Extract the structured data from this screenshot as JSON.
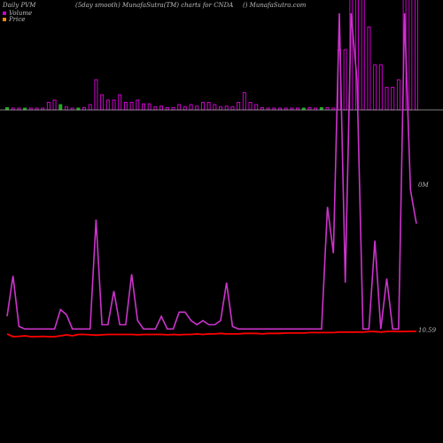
{
  "header": {
    "left": "Daily PVM",
    "middle": "(5day smooth) MunafaSutra(TM) charts for CNDA",
    "right": "() MunafaSutra.com"
  },
  "legend": [
    {
      "label": "Volume",
      "color": "#cc00cc"
    },
    {
      "label": "Price",
      "color": "#ff8800"
    }
  ],
  "colors": {
    "volume_up": "#cc00cc",
    "volume_down": "#22aa22",
    "pvm_line": "#cc33cc",
    "price_line": "#ff0000",
    "baseline": "#aaaaaa"
  },
  "chart_data": {
    "type": "bar+line",
    "title": "(5day smooth) MunafaSutra(TM) charts for CNDA",
    "volume_axis_label": "0M",
    "price_axis_label": "10.59",
    "series": [
      {
        "name": "Volume",
        "type": "bar",
        "values": [
          3,
          1,
          2,
          1,
          1,
          2,
          2,
          10,
          13,
          7,
          4,
          2,
          0,
          3,
          7,
          40,
          20,
          13,
          13,
          20,
          10,
          10,
          13,
          8,
          8,
          4,
          5,
          3,
          3,
          7,
          4,
          7,
          5,
          10,
          10,
          7,
          4,
          5,
          4,
          10,
          23,
          10,
          7,
          3,
          2,
          1,
          2,
          1,
          1,
          2,
          1,
          3,
          1,
          3,
          3,
          2,
          80,
          80,
          150,
          150,
          150,
          110,
          60,
          60,
          30,
          30,
          40,
          150,
          150,
          150
        ],
        "direction": [
          "d",
          "u",
          "u",
          "d",
          "u",
          "u",
          "u",
          "u",
          "u",
          "d",
          "u",
          "u",
          "d",
          "u",
          "u",
          "u",
          "u",
          "u",
          "u",
          "u",
          "u",
          "u",
          "u",
          "u",
          "u",
          "u",
          "u",
          "u",
          "u",
          "u",
          "u",
          "u",
          "u",
          "u",
          "u",
          "u",
          "u",
          "u",
          "u",
          "u",
          "u",
          "u",
          "u",
          "u",
          "u",
          "u",
          "u",
          "u",
          "u",
          "u",
          "d",
          "u",
          "u",
          "d",
          "u",
          "u",
          "u",
          "u",
          "u",
          "u",
          "u",
          "u",
          "u",
          "u",
          "u",
          "u",
          "u",
          "u",
          "u",
          "u"
        ]
      },
      {
        "name": "PVM",
        "type": "line",
        "values": [
          20,
          68,
          8,
          5,
          5,
          5,
          5,
          5,
          5,
          28,
          22,
          5,
          5,
          5,
          5,
          135,
          10,
          10,
          50,
          10,
          10,
          70,
          15,
          5,
          5,
          5,
          20,
          5,
          5,
          25,
          25,
          15,
          10,
          15,
          10,
          10,
          15,
          60,
          8,
          5,
          5,
          5,
          5,
          5,
          5,
          5,
          5,
          5,
          5,
          5,
          5,
          5,
          5,
          5,
          150,
          95,
          380,
          60,
          380,
          300,
          5,
          5,
          110,
          5,
          65,
          5,
          5,
          380,
          170,
          130
        ]
      },
      {
        "name": "Price",
        "type": "line",
        "values": [
          10.45,
          10.3,
          10.32,
          10.35,
          10.3,
          10.3,
          10.32,
          10.3,
          10.3,
          10.35,
          10.4,
          10.35,
          10.42,
          10.42,
          10.4,
          10.38,
          10.4,
          10.42,
          10.42,
          10.42,
          10.42,
          10.42,
          10.4,
          10.42,
          10.42,
          10.42,
          10.42,
          10.4,
          10.42,
          10.4,
          10.42,
          10.42,
          10.45,
          10.42,
          10.45,
          10.45,
          10.48,
          10.45,
          10.45,
          10.45,
          10.48,
          10.48,
          10.48,
          10.45,
          10.48,
          10.48,
          10.48,
          10.5,
          10.5,
          10.5,
          10.5,
          10.52,
          10.52,
          10.52,
          10.52,
          10.52,
          10.55,
          10.55,
          10.55,
          10.55,
          10.55,
          10.58,
          10.58,
          10.55,
          10.58,
          10.59,
          10.58,
          10.58,
          10.59,
          10.59
        ]
      }
    ]
  }
}
